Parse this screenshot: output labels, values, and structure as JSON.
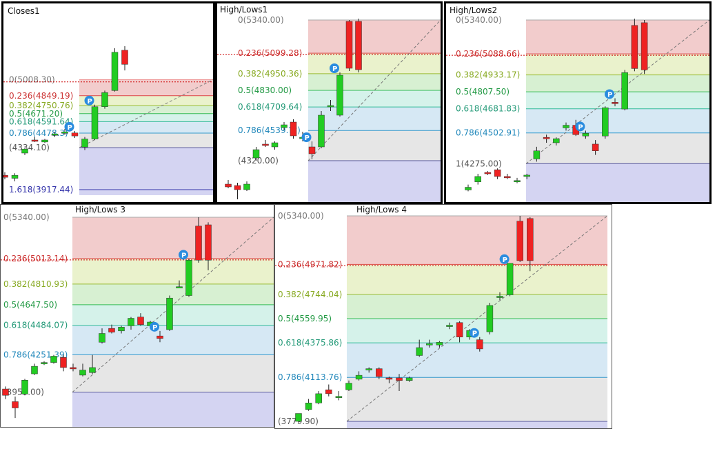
{
  "colors": {
    "up": "#22cc22",
    "down": "#ee2222",
    "pivot": "#2a8cdf"
  },
  "charts": [
    {
      "id": "p1",
      "title": "Closes1",
      "price_hi": 5340,
      "price_lo": 3917.44,
      "extra_line": {
        "price": 3917.44,
        "label": "1.618(3917.44)",
        "color": "#3333aa"
      },
      "levels": [
        {
          "label": "0(5008.30)",
          "price": 5008.3,
          "color": "#ee9999",
          "text": "#777777"
        },
        {
          "label": "0.236(4849.19)",
          "price": 4849.19,
          "color": "#dd4444",
          "text": "#cc3333"
        },
        {
          "label": "0.382(4750.76)",
          "price": 4750.76,
          "color": "#99bb33",
          "text": "#88aa22"
        },
        {
          "label": "0.5(4671.20)",
          "price": 4671.2,
          "color": "#33bb55",
          "text": "#229944"
        },
        {
          "label": "0.618(4591.64)",
          "price": 4591.64,
          "color": "#33bb99",
          "text": "#229977"
        },
        {
          "label": "0.786(4478.3)",
          "price": 4478.3,
          "color": "#3399cc",
          "text": "#2288bb"
        },
        {
          "label": "(4334.10)",
          "price": 4334.1,
          "color": "#555599",
          "text": "#555555"
        }
      ],
      "bands": [
        "#f2cccc",
        "#eaf2cc",
        "#d7f0d2",
        "#d5f2ea",
        "#d6e8f4",
        "#e6e6e6",
        "#d4d4f2"
      ],
      "candles": [
        {
          "o": 4060,
          "h": 4090,
          "l": 4020,
          "c": 4040
        },
        {
          "o": 4030,
          "h": 4080,
          "l": 4000,
          "c": 4060
        },
        {
          "o": 4280,
          "h": 4330,
          "l": 4260,
          "c": 4320
        },
        {
          "o": 4410,
          "h": 4440,
          "l": 4390,
          "c": 4400
        },
        {
          "o": 4390,
          "h": 4420,
          "l": 4380,
          "c": 4410
        },
        {
          "o": 4460,
          "h": 4490,
          "l": 4440,
          "c": 4470
        },
        {
          "o": 4480,
          "h": 4520,
          "l": 4460,
          "c": 4490
        },
        {
          "o": 4480,
          "h": 4500,
          "l": 4430,
          "c": 4450
        },
        {
          "o": 4340,
          "h": 4440,
          "l": 4310,
          "c": 4420
        },
        {
          "o": 4420,
          "h": 4760,
          "l": 4410,
          "c": 4740
        },
        {
          "o": 4740,
          "h": 4900,
          "l": 4720,
          "c": 4880
        },
        {
          "o": 4900,
          "h": 5320,
          "l": 4890,
          "c": 5280
        },
        {
          "o": 5300,
          "h": 5340,
          "l": 5100,
          "c": 5160
        }
      ],
      "pivots": [
        7,
        9
      ]
    },
    {
      "id": "p2",
      "title": "High/Lows1",
      "price_hi": 5340,
      "price_lo": 4010,
      "levels": [
        {
          "label": "0(5340.00)",
          "price": 5340.0,
          "color": "#aaaaaa",
          "text": "#777777"
        },
        {
          "label": "0.236(5099.28)",
          "price": 5099.28,
          "color": "#dd4444",
          "text": "#cc3333"
        },
        {
          "label": "0.382(4950.36)",
          "price": 4950.36,
          "color": "#99bb33",
          "text": "#88aa22"
        },
        {
          "label": "0.5(4830.00)",
          "price": 4830.0,
          "color": "#33bb55",
          "text": "#229944"
        },
        {
          "label": "0.618(4709.64)",
          "price": 4709.64,
          "color": "#33bb99",
          "text": "#229977"
        },
        {
          "label": "0.786(4539.??)",
          "price": 4539.0,
          "color": "#3399cc",
          "text": "#2288bb"
        },
        {
          "label": "(4320.00)",
          "price": 4320.0,
          "color": "#555599",
          "text": "#555555"
        }
      ],
      "bands": [
        "#f2cccc",
        "#eaf2cc",
        "#d7f0d2",
        "#d5f2ea",
        "#d6e8f4",
        "#e6e6e6",
        "#d4d4f2"
      ],
      "candles": [
        {
          "o": 4150,
          "h": 4180,
          "l": 4120,
          "c": 4130
        },
        {
          "o": 4140,
          "h": 4160,
          "l": 4040,
          "c": 4110
        },
        {
          "o": 4110,
          "h": 4170,
          "l": 4100,
          "c": 4150
        },
        {
          "o": 4340,
          "h": 4420,
          "l": 4320,
          "c": 4400
        },
        {
          "o": 4440,
          "h": 4470,
          "l": 4420,
          "c": 4430
        },
        {
          "o": 4420,
          "h": 4460,
          "l": 4400,
          "c": 4450
        },
        {
          "o": 4560,
          "h": 4600,
          "l": 4540,
          "c": 4580
        },
        {
          "o": 4600,
          "h": 4620,
          "l": 4480,
          "c": 4500
        },
        {
          "o": 4480,
          "h": 4530,
          "l": 4460,
          "c": 4490
        },
        {
          "o": 4420,
          "h": 4460,
          "l": 4330,
          "c": 4370
        },
        {
          "o": 4420,
          "h": 4680,
          "l": 4410,
          "c": 4650
        },
        {
          "o": 4720,
          "h": 4760,
          "l": 4680,
          "c": 4720
        },
        {
          "o": 4650,
          "h": 4960,
          "l": 4640,
          "c": 4940
        },
        {
          "o": 5330,
          "h": 5340,
          "l": 4970,
          "c": 4990
        },
        {
          "o": 5330,
          "h": 5350,
          "l": 4960,
          "c": 4980
        }
      ],
      "pivots": [
        9,
        12
      ]
    },
    {
      "id": "p3",
      "title": "High/Lows2",
      "price_hi": 5340,
      "price_lo": 3980,
      "levels": [
        {
          "label": "0(5340.00)",
          "price": 5340.0,
          "color": "#aaaaaa",
          "text": "#777777"
        },
        {
          "label": "0.236(5088.66)",
          "price": 5088.66,
          "color": "#dd4444",
          "text": "#cc3333"
        },
        {
          "label": "0.382(4933.17)",
          "price": 4933.17,
          "color": "#99bb33",
          "text": "#88aa22"
        },
        {
          "label": "0.5(4807.50)",
          "price": 4807.5,
          "color": "#33bb55",
          "text": "#229944"
        },
        {
          "label": "0.618(4681.83)",
          "price": 4681.83,
          "color": "#33bb99",
          "text": "#229977"
        },
        {
          "label": "0.786(4502.91)",
          "price": 4502.91,
          "color": "#3399cc",
          "text": "#2288bb"
        },
        {
          "label": "1(4275.00)",
          "price": 4275.0,
          "color": "#555599",
          "text": "#555555"
        }
      ],
      "bands": [
        "#f2cccc",
        "#eaf2cc",
        "#d7f0d2",
        "#d5f2ea",
        "#d6e8f4",
        "#e6e6e6",
        "#d4d4f2"
      ],
      "candles": [
        {
          "o": 4080,
          "h": 4120,
          "l": 4070,
          "c": 4100
        },
        {
          "o": 4140,
          "h": 4200,
          "l": 4120,
          "c": 4180
        },
        {
          "o": 4210,
          "h": 4220,
          "l": 4190,
          "c": 4200
        },
        {
          "o": 4230,
          "h": 4240,
          "l": 4160,
          "c": 4180
        },
        {
          "o": 4180,
          "h": 4200,
          "l": 4160,
          "c": 4170
        },
        {
          "o": 4150,
          "h": 4170,
          "l": 4130,
          "c": 4150
        },
        {
          "o": 4180,
          "h": 4200,
          "l": 4160,
          "c": 4190
        },
        {
          "o": 4310,
          "h": 4400,
          "l": 4290,
          "c": 4370
        },
        {
          "o": 4470,
          "h": 4490,
          "l": 4430,
          "c": 4460
        },
        {
          "o": 4430,
          "h": 4470,
          "l": 4410,
          "c": 4460
        },
        {
          "o": 4540,
          "h": 4580,
          "l": 4520,
          "c": 4560
        },
        {
          "o": 4560,
          "h": 4600,
          "l": 4480,
          "c": 4490
        },
        {
          "o": 4480,
          "h": 4520,
          "l": 4460,
          "c": 4500
        },
        {
          "o": 4420,
          "h": 4450,
          "l": 4340,
          "c": 4370
        },
        {
          "o": 4480,
          "h": 4700,
          "l": 4460,
          "c": 4690
        },
        {
          "o": 4730,
          "h": 4760,
          "l": 4700,
          "c": 4720
        },
        {
          "o": 4680,
          "h": 4970,
          "l": 4670,
          "c": 4950
        },
        {
          "o": 5300,
          "h": 5350,
          "l": 4960,
          "c": 4980
        },
        {
          "o": 5320,
          "h": 5340,
          "l": 4940,
          "c": 4970
        }
      ],
      "pivots": [
        12,
        15
      ]
    },
    {
      "id": "p4",
      "title": "High/Lows 3",
      "price_hi": 5340,
      "price_lo": 3680,
      "levels": [
        {
          "label": "0(5340.00)",
          "price": 5340.0,
          "color": "#aaaaaa",
          "text": "#777777"
        },
        {
          "label": "0.236(5013.14)",
          "price": 5013.14,
          "color": "#dd4444",
          "text": "#cc3333"
        },
        {
          "label": "0.382(4810.93)",
          "price": 4810.93,
          "color": "#99bb33",
          "text": "#88aa22"
        },
        {
          "label": "0.5(4647.50)",
          "price": 4647.5,
          "color": "#33bb55",
          "text": "#229944"
        },
        {
          "label": "0.618(4484.07)",
          "price": 4484.07,
          "color": "#33bb99",
          "text": "#229977"
        },
        {
          "label": "0.786(4251.39)",
          "price": 4251.39,
          "color": "#3399cc",
          "text": "#2288bb"
        },
        {
          "label": "(3955.00)",
          "price": 3955.0,
          "color": "#555599",
          "text": "#555555"
        }
      ],
      "bands": [
        "#f2cccc",
        "#eaf2cc",
        "#d7f0d2",
        "#d5f2ea",
        "#d6e8f4",
        "#e6e6e6",
        "#d4d4f2"
      ],
      "candles": [
        {
          "o": 3980,
          "h": 4000,
          "l": 3900,
          "c": 3930
        },
        {
          "o": 3880,
          "h": 3920,
          "l": 3750,
          "c": 3830
        },
        {
          "o": 3940,
          "h": 4060,
          "l": 3930,
          "c": 4050
        },
        {
          "o": 4100,
          "h": 4180,
          "l": 4090,
          "c": 4160
        },
        {
          "o": 4180,
          "h": 4200,
          "l": 4170,
          "c": 4190
        },
        {
          "o": 4190,
          "h": 4250,
          "l": 4180,
          "c": 4240
        },
        {
          "o": 4230,
          "h": 4250,
          "l": 4120,
          "c": 4150
        },
        {
          "o": 4150,
          "h": 4180,
          "l": 4120,
          "c": 4140
        },
        {
          "o": 4090,
          "h": 4180,
          "l": 4080,
          "c": 4130
        },
        {
          "o": 4110,
          "h": 4250,
          "l": 4100,
          "c": 4150
        },
        {
          "o": 4350,
          "h": 4460,
          "l": 4340,
          "c": 4420
        },
        {
          "o": 4460,
          "h": 4490,
          "l": 4420,
          "c": 4430
        },
        {
          "o": 4440,
          "h": 4480,
          "l": 4420,
          "c": 4470
        },
        {
          "o": 4480,
          "h": 4550,
          "l": 4450,
          "c": 4540
        },
        {
          "o": 4550,
          "h": 4580,
          "l": 4480,
          "c": 4490
        },
        {
          "o": 4480,
          "h": 4520,
          "l": 4460,
          "c": 4510
        },
        {
          "o": 4400,
          "h": 4440,
          "l": 4350,
          "c": 4380
        },
        {
          "o": 4450,
          "h": 4720,
          "l": 4440,
          "c": 4700
        },
        {
          "o": 4790,
          "h": 4840,
          "l": 4780,
          "c": 4790
        },
        {
          "o": 4720,
          "h": 5010,
          "l": 4710,
          "c": 5000
        },
        {
          "o": 5270,
          "h": 5340,
          "l": 4980,
          "c": 5000
        },
        {
          "o": 5280,
          "h": 5300,
          "l": 4920,
          "c": 5000
        }
      ],
      "pivots": [
        16,
        19
      ]
    },
    {
      "id": "p5",
      "title": "High/Lows 4",
      "price_hi": 5340,
      "price_lo": 3779.9,
      "levels": [
        {
          "label": "0(5340.00)",
          "price": 5340.0,
          "color": "#aaaaaa",
          "text": "#777777"
        },
        {
          "label": "0.236(4971.82)",
          "price": 4971.82,
          "color": "#dd4444",
          "text": "#cc3333"
        },
        {
          "label": "0.382(4744.04)",
          "price": 4744.04,
          "color": "#99bb33",
          "text": "#88aa22"
        },
        {
          "label": "0.5(4559.95)",
          "price": 4559.95,
          "color": "#33bb55",
          "text": "#229944"
        },
        {
          "label": "0.618(4375.86)",
          "price": 4375.86,
          "color": "#33bb99",
          "text": "#229977"
        },
        {
          "label": "0.786(4113.76)",
          "price": 4113.76,
          "color": "#3399cc",
          "text": "#2288bb"
        },
        {
          "label": "(3779.90)",
          "price": 3779.9,
          "color": "#555599",
          "text": "#555555"
        }
      ],
      "bands": [
        "#f2cccc",
        "#eaf2cc",
        "#d7f0d2",
        "#d5f2ea",
        "#d6e8f4",
        "#e6e6e6",
        "#d4d4f2"
      ],
      "candles": [
        {
          "o": 3780,
          "h": 3840,
          "l": 3770,
          "c": 3840
        },
        {
          "o": 3870,
          "h": 3950,
          "l": 3860,
          "c": 3920
        },
        {
          "o": 3920,
          "h": 4010,
          "l": 3910,
          "c": 3990
        },
        {
          "o": 4020,
          "h": 4060,
          "l": 3970,
          "c": 3990
        },
        {
          "o": 3960,
          "h": 4010,
          "l": 3940,
          "c": 3970
        },
        {
          "o": 4020,
          "h": 4090,
          "l": 4010,
          "c": 4070
        },
        {
          "o": 4100,
          "h": 4160,
          "l": 4090,
          "c": 4130
        },
        {
          "o": 4170,
          "h": 4190,
          "l": 4150,
          "c": 4180
        },
        {
          "o": 4180,
          "h": 4190,
          "l": 4100,
          "c": 4120
        },
        {
          "o": 4110,
          "h": 4120,
          "l": 4070,
          "c": 4100
        },
        {
          "o": 4110,
          "h": 4140,
          "l": 4010,
          "c": 4090
        },
        {
          "o": 4090,
          "h": 4120,
          "l": 4080,
          "c": 4110
        },
        {
          "o": 4280,
          "h": 4400,
          "l": 4270,
          "c": 4340
        },
        {
          "o": 4360,
          "h": 4400,
          "l": 4340,
          "c": 4370
        },
        {
          "o": 4360,
          "h": 4390,
          "l": 4340,
          "c": 4380
        },
        {
          "o": 4500,
          "h": 4530,
          "l": 4480,
          "c": 4510
        },
        {
          "o": 4530,
          "h": 4540,
          "l": 4380,
          "c": 4420
        },
        {
          "o": 4420,
          "h": 4480,
          "l": 4400,
          "c": 4470
        },
        {
          "o": 4400,
          "h": 4420,
          "l": 4310,
          "c": 4330
        },
        {
          "o": 4460,
          "h": 4680,
          "l": 4440,
          "c": 4660
        },
        {
          "o": 4730,
          "h": 4760,
          "l": 4700,
          "c": 4730
        },
        {
          "o": 4740,
          "h": 4980,
          "l": 4730,
          "c": 4980
        },
        {
          "o": 5300,
          "h": 5340,
          "l": 4990,
          "c": 5000
        },
        {
          "o": 5320,
          "h": 5330,
          "l": 4920,
          "c": 5000
        }
      ],
      "pivots": [
        18,
        21
      ]
    }
  ],
  "chart_data": [
    {
      "type": "candlestick",
      "title": "Closes1",
      "levels": [
        "0(5008.30)",
        "0.236(4849.19)",
        "0.382(4750.76)",
        "0.5(4671.20)",
        "0.618(4591.64)",
        "0.786(4478.3",
        "(4334.10)",
        "1.618(3917.44)"
      ]
    },
    {
      "type": "candlestick",
      "title": "High/Lows1",
      "levels": [
        "0(5340.00)",
        "0.236(5099.28)",
        "0.382(4950.36)",
        "0.5(4830.00)",
        "0.618(4709.64)",
        "0.786(4539",
        "(4320.00)"
      ]
    },
    {
      "type": "candlestick",
      "title": "High/Lows2",
      "levels": [
        "0(5340.00)",
        "0.236(5088.66)",
        "0.382(4933.17)",
        "0.5(4807.50)",
        "0.618(4681.83)",
        "0.786(4502.91)",
        "1(4275.00)"
      ]
    },
    {
      "type": "candlestick",
      "title": "High/Lows 3",
      "levels": [
        "0(5340.00)",
        "0.236(5013.14)",
        "0.382(4810.93)",
        "0.5(4647.50)",
        "0.618(4484.07)",
        "0.786(4251.39)",
        "(3955.00)"
      ]
    },
    {
      "type": "candlestick",
      "title": "High/Lows 4",
      "levels": [
        "0(5340.00)",
        "0.236(4971.82)",
        "0.382(4744.04)",
        "0.5(4559.95)",
        "0.618(4375.86)",
        "0.786(4113.76)",
        "(3779.90)"
      ]
    }
  ]
}
